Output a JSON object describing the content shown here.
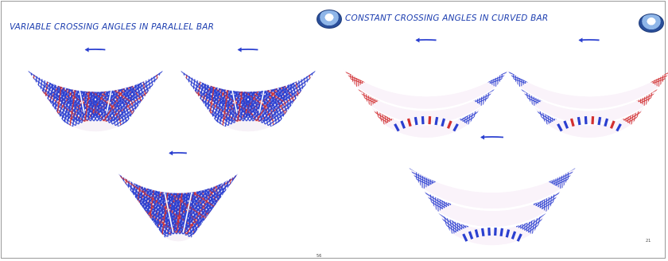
{
  "titles": {
    "left": "VARIABLE CROSSING  ANGLES IN PARALLEL BAR",
    "right": "CONSTANT CROSSING  ANGLES IN CURVED BAR"
  },
  "page_numbers": {
    "left": "56",
    "right": "21"
  },
  "colors": {
    "title": "#1e3fb0",
    "blue_strand": "#2a3fd0",
    "red_strand": "#d23030",
    "arrow": "#2a3fd0"
  },
  "icons": [
    "university-logo",
    "university-logo",
    "rotation-arrow-icon"
  ]
}
